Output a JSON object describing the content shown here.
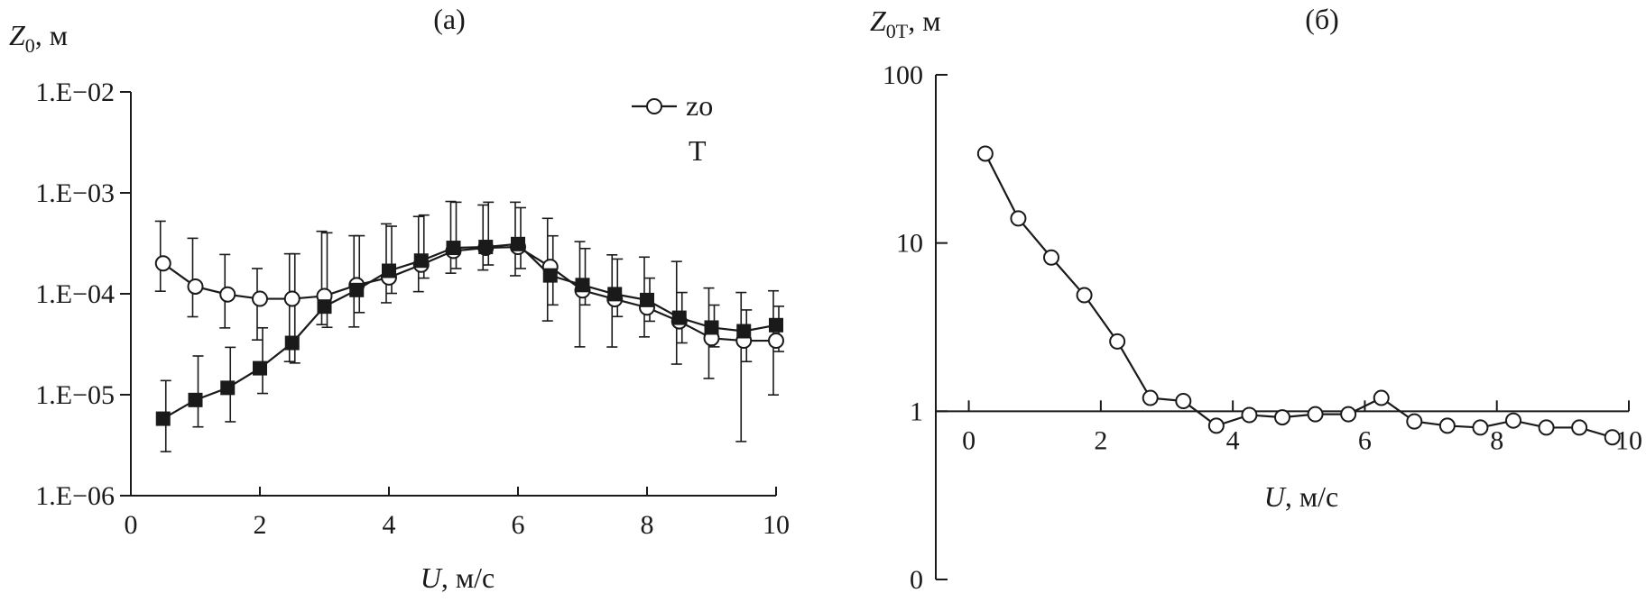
{
  "chart_data": [
    {
      "type": "line",
      "panel_label": "(а)",
      "ylabel_var": "Z",
      "ylabel_sub": "0",
      "ylabel_unit": ", м",
      "xlabel_var": "U",
      "xlabel_unit": ", м/с",
      "y_scale": "log",
      "xlim": [
        0,
        10
      ],
      "ylim": [
        1e-06,
        0.01
      ],
      "x_ticks": [
        0,
        2,
        4,
        6,
        8,
        10
      ],
      "x_tick_labels": [
        "0",
        "2",
        "4",
        "6",
        "8",
        "10"
      ],
      "y_ticks": [
        1e-06,
        1e-05,
        0.0001,
        0.001,
        0.01
      ],
      "y_tick_labels": [
        "1.E−06",
        "1.E−05",
        "1.E−04",
        "1.E−03",
        "1.E−02"
      ],
      "legend": {
        "placement": "top-right",
        "entries": [
          "zo",
          "T"
        ]
      },
      "series": [
        {
          "name": "zo",
          "marker": "circle",
          "x": [
            0.5,
            1.0,
            1.5,
            2.0,
            2.5,
            3.0,
            3.5,
            4.0,
            4.5,
            5.0,
            5.5,
            6.0,
            6.5,
            7.0,
            7.5,
            8.0,
            8.5,
            9.0,
            9.5,
            10.0
          ],
          "y": [
            0.0002,
            0.000118,
            9.85e-05,
            8.92e-05,
            8.92e-05,
            9.51e-05,
            0.000122,
            0.000145,
            0.000194,
            0.000266,
            0.000285,
            0.000291,
            0.000185,
            0.000108,
            8.84e-05,
            7.31e-05,
            5.33e-05,
            3.63e-05,
            3.43e-05,
            3.43e-05
          ],
          "err_low": [
            0.000106,
            5.92e-05,
            4.59e-05,
            3.49e-05,
            2.13e-05,
            4.95e-05,
            4.69e-05,
            8.15e-05,
            0.000105,
            0.00016,
            0.000172,
            0.000151,
            5.39e-05,
            2.98e-05,
            2.97e-05,
            3.74e-05,
            2.01e-05,
            1.45e-05,
            3.44e-06,
            9.96e-06
          ],
          "err_high": [
            0.000524,
            0.000355,
            0.000245,
            0.000178,
            0.000249,
            0.000416,
            0.000376,
            0.000493,
            0.000583,
            0.000822,
            0.000758,
            0.000808,
            0.000559,
            0.000329,
            0.000243,
            0.000231,
            0.000209,
            0.000114,
            0.000103,
            0.000107
          ]
        },
        {
          "name": "T",
          "marker": "square",
          "x": [
            0.5,
            1.0,
            1.5,
            2.0,
            2.5,
            3.0,
            3.5,
            4.0,
            4.5,
            5.0,
            5.5,
            6.0,
            6.5,
            7.0,
            7.5,
            8.0,
            8.5,
            9.0,
            9.5,
            10.0
          ],
          "y": [
            5.79e-06,
            8.87e-06,
            1.17e-05,
            1.83e-05,
            3.26e-05,
            7.47e-05,
            0.000109,
            0.000169,
            0.000213,
            0.000285,
            0.000291,
            0.000311,
            0.000152,
            0.000122,
            9.92e-05,
            8.68e-05,
            5.79e-05,
            4.63e-05,
            4.26e-05,
            4.89e-05
          ],
          "err_low": [
            2.73e-06,
            4.8e-06,
            5.4e-06,
            1.03e-05,
            2.06e-05,
            4.65e-05,
            6.52e-05,
            0.000101,
            0.000143,
            0.000178,
            0.000193,
            0.000178,
            7.76e-05,
            7.76e-05,
            5.95e-05,
            5.35e-05,
            3.26e-05,
            2.98e-05,
            2.13e-05,
            2.68e-05
          ],
          "err_high": [
            1.38e-05,
            2.42e-05,
            2.95e-05,
            4.6e-05,
            0.000249,
            0.000402,
            0.000376,
            0.000467,
            0.000602,
            0.000808,
            0.000808,
            0.000713,
            0.000375,
            0.000281,
            0.000221,
            0.000143,
            0.000103,
            7.73e-05,
            6.92e-05,
            7.52e-05
          ]
        }
      ]
    },
    {
      "type": "line",
      "panel_label": "(б)",
      "ylabel_var": "Z",
      "ylabel_sub": "0T",
      "ylabel_unit": ", м",
      "xlabel_var": "U",
      "xlabel_unit": ", м/с",
      "y_scale": "log",
      "xlim": [
        -0.5,
        10
      ],
      "ylim": [
        0.1,
        100
      ],
      "x_axis_crosses_y_at": 1,
      "x_ticks": [
        0,
        2,
        4,
        6,
        8,
        10
      ],
      "x_tick_labels": [
        "0",
        "2",
        "4",
        "6",
        "8",
        "10"
      ],
      "y_ticks": [
        0.1,
        1,
        10,
        100
      ],
      "y_tick_labels": [
        "0",
        "1",
        "10",
        "100"
      ],
      "series": [
        {
          "marker": "circle",
          "x": [
            0.25,
            0.75,
            1.25,
            1.75,
            2.25,
            2.75,
            3.25,
            3.75,
            4.25,
            4.75,
            5.25,
            5.75,
            6.25,
            6.75,
            7.25,
            7.75,
            8.25,
            8.75,
            9.25,
            9.75
          ],
          "y": [
            34,
            14,
            8.2,
            4.9,
            2.6,
            1.2,
            1.15,
            0.82,
            0.95,
            0.92,
            0.96,
            0.96,
            1.2,
            0.87,
            0.82,
            0.8,
            0.88,
            0.8,
            0.8,
            0.7
          ]
        }
      ]
    }
  ]
}
